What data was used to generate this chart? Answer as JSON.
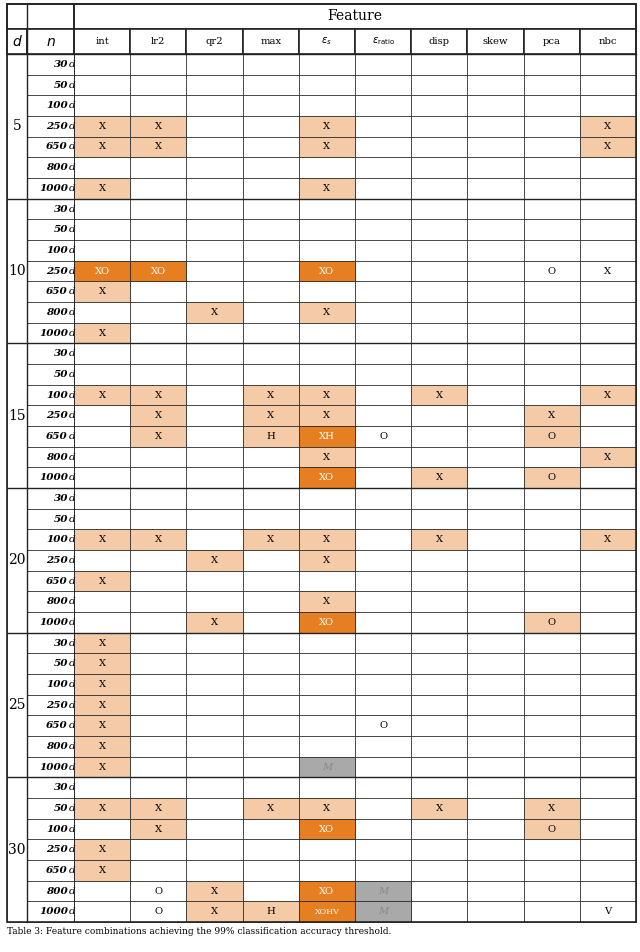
{
  "col_keys": [
    "int",
    "lr2",
    "qr2",
    "max",
    "eps_s",
    "eps_ratio",
    "disp",
    "skew",
    "pca",
    "nbc"
  ],
  "col_headers_display": [
    "int",
    "lr2",
    "qr2",
    "max",
    "$\\varepsilon_s$",
    "$\\varepsilon_{\\mathrm{ratio}}$",
    "disp",
    "skew",
    "pca",
    "nbc"
  ],
  "row_groups": [
    5,
    10,
    15,
    20,
    25,
    30
  ],
  "n_values": [
    "30d",
    "50d",
    "100d",
    "250d",
    "650d",
    "800d",
    "1000d"
  ],
  "cells": {
    "5": {
      "250d": [
        {
          "col": "int",
          "text": "X",
          "bg": "light"
        },
        {
          "col": "lr2",
          "text": "X",
          "bg": "light"
        },
        {
          "col": "eps_s",
          "text": "X",
          "bg": "light"
        },
        {
          "col": "nbc",
          "text": "X",
          "bg": "light"
        }
      ],
      "650d": [
        {
          "col": "int",
          "text": "X",
          "bg": "light"
        },
        {
          "col": "lr2",
          "text": "X",
          "bg": "light"
        },
        {
          "col": "eps_s",
          "text": "X",
          "bg": "light"
        },
        {
          "col": "nbc",
          "text": "X",
          "bg": "light"
        }
      ],
      "1000d": [
        {
          "col": "int",
          "text": "X",
          "bg": "light"
        },
        {
          "col": "eps_s",
          "text": "X",
          "bg": "light"
        }
      ]
    },
    "10": {
      "250d": [
        {
          "col": "int",
          "text": "XO",
          "bg": "dark"
        },
        {
          "col": "lr2",
          "text": "XO",
          "bg": "dark"
        },
        {
          "col": "eps_s",
          "text": "XO",
          "bg": "dark"
        },
        {
          "col": "pca",
          "text": "O",
          "bg": "none"
        },
        {
          "col": "nbc",
          "text": "X",
          "bg": "none"
        }
      ],
      "650d": [
        {
          "col": "int",
          "text": "X",
          "bg": "light"
        }
      ],
      "800d": [
        {
          "col": "qr2",
          "text": "X",
          "bg": "light"
        },
        {
          "col": "eps_s",
          "text": "X",
          "bg": "light"
        }
      ],
      "1000d": [
        {
          "col": "int",
          "text": "X",
          "bg": "light"
        }
      ]
    },
    "15": {
      "100d": [
        {
          "col": "int",
          "text": "X",
          "bg": "light"
        },
        {
          "col": "lr2",
          "text": "X",
          "bg": "light"
        },
        {
          "col": "max",
          "text": "X",
          "bg": "light"
        },
        {
          "col": "eps_s",
          "text": "X",
          "bg": "light"
        },
        {
          "col": "disp",
          "text": "X",
          "bg": "light"
        },
        {
          "col": "nbc",
          "text": "X",
          "bg": "light"
        }
      ],
      "250d": [
        {
          "col": "lr2",
          "text": "X",
          "bg": "light"
        },
        {
          "col": "max",
          "text": "X",
          "bg": "light"
        },
        {
          "col": "eps_s",
          "text": "X",
          "bg": "light"
        },
        {
          "col": "pca",
          "text": "X",
          "bg": "light"
        }
      ],
      "650d": [
        {
          "col": "lr2",
          "text": "X",
          "bg": "light"
        },
        {
          "col": "max",
          "text": "H",
          "bg": "light"
        },
        {
          "col": "eps_ratio",
          "text": "O",
          "bg": "none"
        },
        {
          "col": "eps_s",
          "text": "XH",
          "bg": "dark"
        },
        {
          "col": "pca",
          "text": "O",
          "bg": "light"
        }
      ],
      "800d": [
        {
          "col": "eps_s",
          "text": "X",
          "bg": "light"
        },
        {
          "col": "nbc",
          "text": "X",
          "bg": "light"
        }
      ],
      "1000d": [
        {
          "col": "eps_s",
          "text": "XO",
          "bg": "dark"
        },
        {
          "col": "disp",
          "text": "X",
          "bg": "light"
        },
        {
          "col": "pca",
          "text": "O",
          "bg": "light"
        }
      ]
    },
    "20": {
      "100d": [
        {
          "col": "int",
          "text": "X",
          "bg": "light"
        },
        {
          "col": "lr2",
          "text": "X",
          "bg": "light"
        },
        {
          "col": "max",
          "text": "X",
          "bg": "light"
        },
        {
          "col": "eps_s",
          "text": "X",
          "bg": "light"
        },
        {
          "col": "disp",
          "text": "X",
          "bg": "light"
        },
        {
          "col": "nbc",
          "text": "X",
          "bg": "light"
        }
      ],
      "250d": [
        {
          "col": "qr2",
          "text": "X",
          "bg": "light"
        },
        {
          "col": "eps_s",
          "text": "X",
          "bg": "light"
        }
      ],
      "650d": [
        {
          "col": "int",
          "text": "X",
          "bg": "light"
        }
      ],
      "800d": [
        {
          "col": "eps_s",
          "text": "X",
          "bg": "light"
        }
      ],
      "1000d": [
        {
          "col": "qr2",
          "text": "X",
          "bg": "light"
        },
        {
          "col": "eps_s",
          "text": "XO",
          "bg": "dark"
        },
        {
          "col": "pca",
          "text": "O",
          "bg": "light"
        }
      ]
    },
    "25": {
      "30d": [
        {
          "col": "int",
          "text": "X",
          "bg": "light"
        }
      ],
      "50d": [
        {
          "col": "int",
          "text": "X",
          "bg": "light"
        }
      ],
      "100d": [
        {
          "col": "int",
          "text": "X",
          "bg": "light"
        }
      ],
      "250d": [
        {
          "col": "int",
          "text": "X",
          "bg": "light"
        }
      ],
      "650d": [
        {
          "col": "int",
          "text": "X",
          "bg": "light"
        },
        {
          "col": "eps_ratio",
          "text": "O",
          "bg": "none"
        }
      ],
      "800d": [
        {
          "col": "int",
          "text": "X",
          "bg": "light"
        }
      ],
      "1000d": [
        {
          "col": "int",
          "text": "X",
          "bg": "light"
        },
        {
          "col": "eps_s",
          "text": "M",
          "bg": "gray"
        }
      ]
    },
    "30": {
      "30d": [],
      "50d": [
        {
          "col": "int",
          "text": "X",
          "bg": "light"
        },
        {
          "col": "lr2",
          "text": "X",
          "bg": "light"
        },
        {
          "col": "max",
          "text": "X",
          "bg": "light"
        },
        {
          "col": "eps_s",
          "text": "X",
          "bg": "light"
        },
        {
          "col": "disp",
          "text": "X",
          "bg": "light"
        },
        {
          "col": "pca",
          "text": "X",
          "bg": "light"
        }
      ],
      "100d": [
        {
          "col": "lr2",
          "text": "X",
          "bg": "light"
        },
        {
          "col": "eps_s",
          "text": "XO",
          "bg": "dark"
        },
        {
          "col": "pca",
          "text": "O",
          "bg": "light"
        }
      ],
      "250d": [
        {
          "col": "int",
          "text": "X",
          "bg": "light"
        }
      ],
      "650d": [
        {
          "col": "int",
          "text": "X",
          "bg": "light"
        }
      ],
      "800d": [
        {
          "col": "lr2",
          "text": "O",
          "bg": "none"
        },
        {
          "col": "qr2",
          "text": "X",
          "bg": "light"
        },
        {
          "col": "eps_s",
          "text": "XO",
          "bg": "dark"
        },
        {
          "col": "eps_ratio",
          "text": "M",
          "bg": "gray"
        }
      ],
      "1000d": [
        {
          "col": "lr2",
          "text": "O",
          "bg": "none"
        },
        {
          "col": "qr2",
          "text": "X",
          "bg": "light"
        },
        {
          "col": "max",
          "text": "H",
          "bg": "light"
        },
        {
          "col": "eps_s",
          "text": "XOHV",
          "bg": "dark"
        },
        {
          "col": "eps_ratio",
          "text": "M",
          "bg": "gray"
        },
        {
          "col": "nbc",
          "text": "V",
          "bg": "none"
        }
      ]
    }
  },
  "colors": {
    "light": "#F5CBA7",
    "dark": "#E67E22",
    "gray": "#A9A9A9",
    "none": "#FFFFFF"
  },
  "caption": "Table 3: Feature combinations achieving the 99% classification accuracy threshold."
}
